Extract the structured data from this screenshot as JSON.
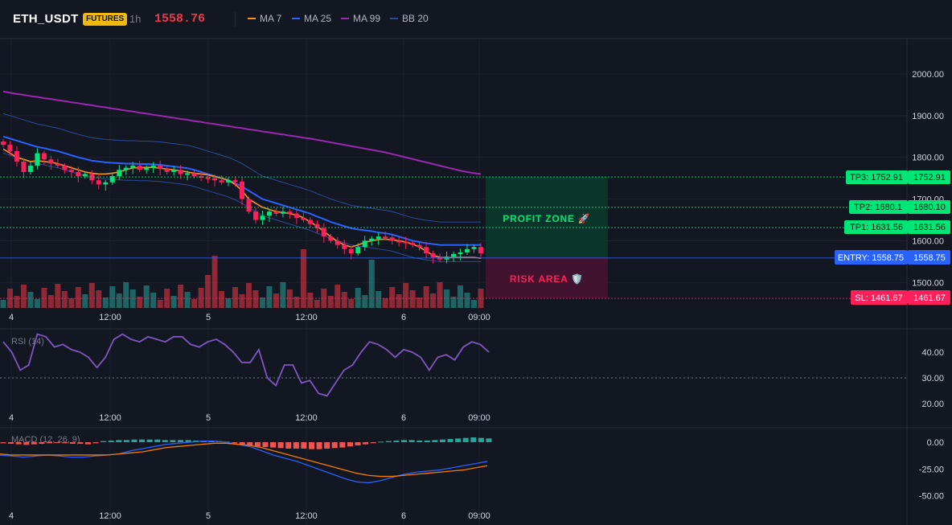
{
  "header": {
    "symbol": "ETH_USDT",
    "badge": "FUTURES",
    "timeframe": "1h",
    "price": "1558.76",
    "legend": [
      {
        "label": "MA 7",
        "color": "#f7931a"
      },
      {
        "label": "MA 25",
        "color": "#2962ff"
      },
      {
        "label": "MA 99",
        "color": "#9c27b0"
      },
      {
        "label": "BB 20",
        "color": "#2c4a9a"
      }
    ]
  },
  "colors": {
    "up": "#26a69a",
    "down": "#f23645",
    "candle_up": "#00e676",
    "candle_down": "#ff1f5a",
    "grid": "#1e222d",
    "entry": "#2962ff",
    "tp": "#00e676",
    "sl": "#ff1f5a",
    "rsi_line": "#7e57c2",
    "macd_line": "#2962ff",
    "signal_line": "#f57c00"
  },
  "chart_data": [
    {
      "type": "candlestick",
      "title": "ETH_USDT 1h",
      "x_ticks": [
        "4",
        "12:00",
        "5",
        "12:00",
        "6",
        "09:00"
      ],
      "y_ticks": [
        "2000.00",
        "1900.00",
        "1800.00",
        "1700.00",
        "1600.00",
        "1500.00"
      ],
      "ylim": [
        1440,
        2050
      ],
      "close": [
        1830,
        1815,
        1790,
        1765,
        1780,
        1810,
        1795,
        1785,
        1780,
        1770,
        1765,
        1755,
        1760,
        1745,
        1735,
        1740,
        1755,
        1770,
        1775,
        1780,
        1770,
        1775,
        1780,
        1772,
        1765,
        1770,
        1760,
        1762,
        1755,
        1752,
        1750,
        1745,
        1740,
        1745,
        1742,
        1700,
        1670,
        1650,
        1660,
        1670,
        1665,
        1670,
        1665,
        1655,
        1650,
        1640,
        1630,
        1610,
        1600,
        1590,
        1580,
        1570,
        1585,
        1600,
        1605,
        1610,
        1608,
        1600,
        1598,
        1595,
        1590,
        1585,
        1570,
        1560,
        1555,
        1562,
        1568,
        1572,
        1580,
        1585,
        1570
      ],
      "ma7": [
        1820,
        1810,
        1800,
        1795,
        1790,
        1792,
        1790,
        1788,
        1785,
        1780,
        1775,
        1770,
        1765,
        1762,
        1760,
        1760,
        1762,
        1765,
        1770,
        1775,
        1775,
        1776,
        1776,
        1774,
        1772,
        1770,
        1768,
        1765,
        1762,
        1760,
        1758,
        1754,
        1750,
        1745,
        1735,
        1720,
        1700,
        1690,
        1680,
        1675,
        1670,
        1668,
        1665,
        1662,
        1655,
        1645,
        1635,
        1622,
        1610,
        1598,
        1590,
        1585,
        1590,
        1596,
        1600,
        1603,
        1604,
        1602,
        1600,
        1597,
        1592,
        1585,
        1575,
        1565,
        1560,
        1559,
        1560,
        1560,
        1560,
        1560,
        1558
      ],
      "ma25": [
        1850,
        1845,
        1840,
        1835,
        1830,
        1825,
        1822,
        1818,
        1815,
        1810,
        1805,
        1800,
        1796,
        1792,
        1790,
        1788,
        1787,
        1786,
        1785,
        1785,
        1784,
        1784,
        1783,
        1782,
        1780,
        1778,
        1776,
        1774,
        1770,
        1765,
        1760,
        1755,
        1750,
        1745,
        1738,
        1730,
        1720,
        1710,
        1700,
        1695,
        1690,
        1685,
        1680,
        1675,
        1670,
        1665,
        1658,
        1652,
        1645,
        1640,
        1635,
        1630,
        1627,
        1625,
        1623,
        1620,
        1618,
        1615,
        1610,
        1605,
        1600,
        1597,
        1594,
        1592,
        1590,
        1590,
        1590,
        1590,
        1590,
        1590,
        1590
      ],
      "ma99": [
        1958,
        1955,
        1952,
        1950,
        1947,
        1945,
        1942,
        1940,
        1937,
        1935,
        1932,
        1930,
        1927,
        1925,
        1922,
        1920,
        1917,
        1915,
        1912,
        1910,
        1907,
        1905,
        1902,
        1900,
        1897,
        1895,
        1892,
        1890,
        1887,
        1885,
        1882,
        1880,
        1877,
        1875,
        1872,
        1870,
        1867,
        1865,
        1862,
        1860,
        1857,
        1855,
        1852,
        1850,
        1847,
        1845,
        1842,
        1839,
        1836,
        1833,
        1830,
        1827,
        1824,
        1821,
        1818,
        1815,
        1812,
        1808,
        1804,
        1800,
        1796,
        1792,
        1788,
        1784,
        1780,
        1776,
        1772,
        1768,
        1765,
        1762,
        1760
      ],
      "entry": {
        "label": "ENTRY: 1558.75",
        "tag": "1558.75",
        "value": 1558.75
      },
      "sl": {
        "label": "SL: 1461.67",
        "tag": "1461.67",
        "value": 1461.67
      },
      "tp1": {
        "label": "TP1: 1631.56",
        "tag": "1631.56",
        "value": 1631.56
      },
      "tp2": {
        "label": "TP2: 1680.1",
        "tag": "1680.10",
        "value": 1680.1
      },
      "tp3": {
        "label": "TP3: 1752.91",
        "tag": "1752.91",
        "value": 1752.91
      },
      "profit_zone_label": "PROFIT ZONE 🚀",
      "risk_area_label": "RISK AREA 🛡️"
    },
    {
      "type": "line",
      "title": "RSI (14)",
      "y_ticks": [
        "40.00",
        "30.00",
        "20.00"
      ],
      "ylim": [
        18,
        50
      ],
      "reference_line": 30,
      "values": [
        44,
        40,
        33,
        35,
        47,
        46,
        42,
        43,
        41,
        40,
        38,
        34,
        38,
        45,
        47,
        45,
        44,
        46,
        45,
        44,
        46,
        46,
        43,
        42,
        44,
        45,
        43,
        40,
        36,
        36,
        41,
        30,
        27,
        35,
        35,
        28,
        29,
        24,
        23,
        28,
        33,
        35,
        40,
        44,
        43,
        41,
        38,
        41,
        40,
        38,
        33,
        38,
        39,
        37,
        42,
        44,
        43,
        40
      ]
    },
    {
      "type": "bar",
      "title": "MACD (12, 26, 9)",
      "y_ticks": [
        "0.00",
        "-25.00",
        "-50.00"
      ],
      "ylim": [
        -55,
        8
      ],
      "histogram": [
        -1,
        -1.5,
        -2,
        -2.5,
        -2,
        -1.5,
        -1,
        -0.5,
        -1,
        -1.5,
        -1.5,
        -2,
        -1,
        1,
        1.5,
        2,
        2,
        2.5,
        2.5,
        2.5,
        2.5,
        2,
        2,
        2,
        2,
        1.5,
        1.5,
        1.5,
        1,
        0.5,
        -1,
        -2,
        -3,
        -4,
        -4.5,
        -5,
        -5.5,
        -6,
        -6,
        -6,
        -6.5,
        -6.5,
        -6,
        -5.5,
        -5,
        -4,
        -3,
        -2,
        -1,
        0.5,
        1,
        1.5,
        2,
        2,
        1.5,
        1.5,
        2,
        2.5,
        3,
        3.5,
        4,
        4.5,
        4,
        3.5
      ],
      "macd": [
        -12,
        -13,
        -14,
        -13,
        -12,
        -13,
        -14,
        -14,
        -13,
        -12,
        -11,
        -8,
        -6,
        -4,
        -2,
        -1,
        0,
        1,
        1,
        0,
        -2,
        -4,
        -8,
        -12,
        -15,
        -18,
        -22,
        -26,
        -30,
        -34,
        -37,
        -38,
        -36,
        -33,
        -30,
        -28,
        -27,
        -26,
        -24,
        -22,
        -20,
        -18
      ],
      "signal": [
        -11,
        -12,
        -12,
        -12,
        -12,
        -12,
        -12,
        -12,
        -12,
        -12,
        -11,
        -10,
        -9,
        -7,
        -5,
        -4,
        -3,
        -2,
        -1,
        -1,
        -2,
        -3,
        -5,
        -8,
        -11,
        -14,
        -17,
        -20,
        -23,
        -26,
        -29,
        -31,
        -32,
        -32,
        -31,
        -30,
        -29,
        -28,
        -27,
        -26,
        -24,
        -22
      ]
    }
  ]
}
